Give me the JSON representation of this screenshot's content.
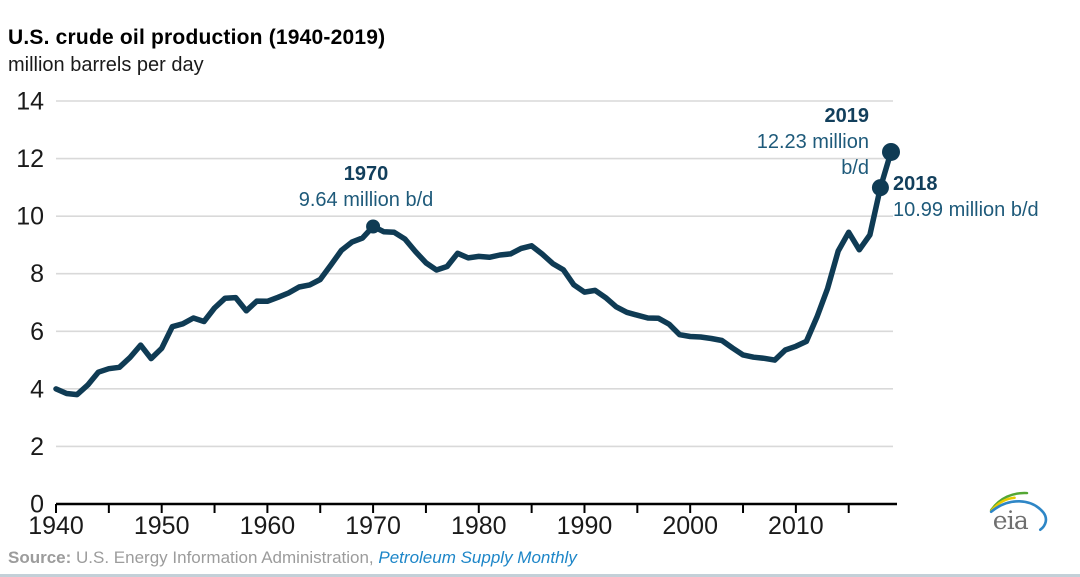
{
  "header": {
    "title": "U.S. crude oil production (1940-2019)",
    "subtitle": "million barrels per day"
  },
  "chart_data": {
    "type": "line",
    "title": "U.S. crude oil production (1940-2019)",
    "ylabel": "million barrels per day",
    "xlabel": "",
    "ylim": [
      0,
      14
    ],
    "xlim": [
      1940,
      2019
    ],
    "y_ticks": [
      0,
      2,
      4,
      6,
      8,
      10,
      12,
      14
    ],
    "x_ticks": [
      1940,
      1950,
      1960,
      1970,
      1980,
      1990,
      2000,
      2010
    ],
    "x_minor_tick_step": 5,
    "grid": "horizontal",
    "legend": "none",
    "line_color": "#0f3b54",
    "grid_color": "#d9d9d9",
    "axis_color": "#000000",
    "years": [
      1940,
      1941,
      1942,
      1943,
      1944,
      1945,
      1946,
      1947,
      1948,
      1949,
      1950,
      1951,
      1952,
      1953,
      1954,
      1955,
      1956,
      1957,
      1958,
      1959,
      1960,
      1961,
      1962,
      1963,
      1964,
      1965,
      1966,
      1967,
      1968,
      1969,
      1970,
      1971,
      1972,
      1973,
      1974,
      1975,
      1976,
      1977,
      1978,
      1979,
      1980,
      1981,
      1982,
      1983,
      1984,
      1985,
      1986,
      1987,
      1988,
      1989,
      1990,
      1991,
      1992,
      1993,
      1994,
      1995,
      1996,
      1997,
      1998,
      1999,
      2000,
      2001,
      2002,
      2003,
      2004,
      2005,
      2006,
      2007,
      2008,
      2009,
      2010,
      2011,
      2012,
      2013,
      2014,
      2015,
      2016,
      2017,
      2018,
      2019
    ],
    "values": [
      4.0,
      3.84,
      3.8,
      4.13,
      4.58,
      4.7,
      4.75,
      5.09,
      5.52,
      5.05,
      5.41,
      6.16,
      6.26,
      6.46,
      6.34,
      6.81,
      7.15,
      7.17,
      6.71,
      7.05,
      7.04,
      7.18,
      7.33,
      7.54,
      7.61,
      7.8,
      8.3,
      8.81,
      9.1,
      9.24,
      9.64,
      9.46,
      9.44,
      9.21,
      8.77,
      8.38,
      8.13,
      8.25,
      8.71,
      8.55,
      8.6,
      8.57,
      8.65,
      8.69,
      8.88,
      8.97,
      8.68,
      8.35,
      8.14,
      7.61,
      7.36,
      7.42,
      7.17,
      6.85,
      6.66,
      6.56,
      6.46,
      6.45,
      6.25,
      5.88,
      5.82,
      5.8,
      5.75,
      5.68,
      5.42,
      5.18,
      5.1,
      5.06,
      5.0,
      5.35,
      5.48,
      5.65,
      6.5,
      7.49,
      8.79,
      9.44,
      8.83,
      9.35,
      10.99,
      12.23
    ],
    "annotated_points": [
      {
        "year": 1970,
        "value": 9.64
      },
      {
        "year": 2018,
        "value": 10.99
      },
      {
        "year": 2019,
        "value": 12.23
      }
    ]
  },
  "annotations": {
    "a1970": {
      "year": "1970",
      "value": "9.64 million b/d"
    },
    "a2019": {
      "year": "2019",
      "value_line1": "12.23 million",
      "value_line2": "b/d"
    },
    "a2018": {
      "year": "2018",
      "value": "10.99 million b/d"
    }
  },
  "footer": {
    "source_label": "Source:",
    "source_text": " U.S. Energy Information Administration, ",
    "source_link": "Petroleum Supply Monthly"
  },
  "logo": {
    "text": "eia"
  }
}
